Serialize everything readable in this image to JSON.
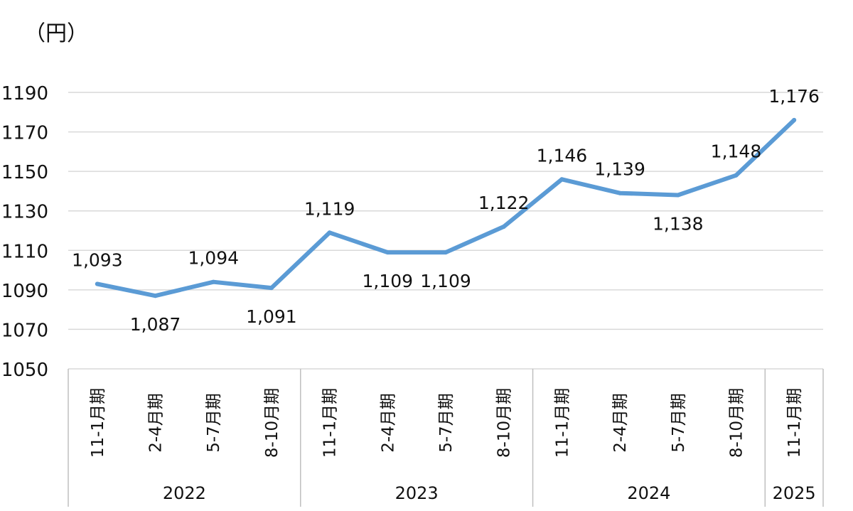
{
  "chart_data": {
    "type": "line",
    "unit_label": "（円）",
    "ylim": [
      1050,
      1190
    ],
    "yticks": [
      "1190",
      "1170",
      "1150",
      "1130",
      "1110",
      "1090",
      "1070",
      "1050"
    ],
    "ytick_values": [
      1190,
      1170,
      1150,
      1130,
      1110,
      1090,
      1070,
      1050
    ],
    "grid": true,
    "categories": [
      "11-1月期",
      "2-4月期",
      "5-7月期",
      "8-10月期",
      "11-1月期",
      "2-4月期",
      "5-7月期",
      "8-10月期",
      "11-1月期",
      "2-4月期",
      "5-7月期",
      "8-10月期",
      "11-1月期"
    ],
    "groups": [
      {
        "label": "2022",
        "count": 4
      },
      {
        "label": "2023",
        "count": 4
      },
      {
        "label": "2024",
        "count": 4
      },
      {
        "label": "2025",
        "count": 1
      }
    ],
    "series": [
      {
        "values": [
          1093,
          1087,
          1094,
          1091,
          1119,
          1109,
          1109,
          1122,
          1146,
          1139,
          1138,
          1148,
          1176
        ],
        "data_labels": [
          "1,093",
          "1,087",
          "1,094",
          "1,091",
          "1,119",
          "1,109",
          "1,109",
          "1,122",
          "1,146",
          "1,139",
          "1,138",
          "1,148",
          "1,176"
        ],
        "label_positions": [
          "above",
          "below",
          "above",
          "below",
          "above",
          "below",
          "below",
          "above",
          "above",
          "above",
          "below",
          "above",
          "above"
        ],
        "color": "#5B9BD5"
      }
    ],
    "colors": {
      "line": "#5B9BD5",
      "grid": "#d9d9d9",
      "axis": "#bfbfbf",
      "text": "#111111"
    }
  }
}
